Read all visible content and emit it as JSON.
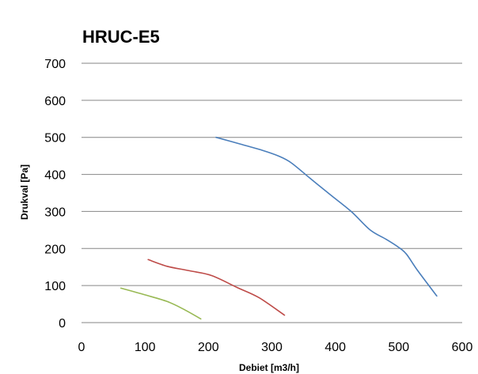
{
  "chart_data": {
    "type": "line",
    "title": "HRUC-E5",
    "xlabel": "Debiet [m3/h]",
    "ylabel": "Drukval [Pa]",
    "xlim": [
      0,
      600
    ],
    "ylim": [
      0,
      700
    ],
    "xticks": [
      0,
      100,
      200,
      300,
      400,
      500,
      600
    ],
    "yticks": [
      0,
      100,
      200,
      300,
      400,
      500,
      600,
      700
    ],
    "grid": "horizontal",
    "series": [
      {
        "color": "#4a7ebb",
        "points": [
          [
            212,
            500
          ],
          [
            250,
            482
          ],
          [
            285,
            465
          ],
          [
            310,
            450
          ],
          [
            330,
            432
          ],
          [
            360,
            390
          ],
          [
            390,
            348
          ],
          [
            425,
            300
          ],
          [
            455,
            250
          ],
          [
            480,
            225
          ],
          [
            500,
            203
          ],
          [
            512,
            185
          ],
          [
            530,
            140
          ],
          [
            560,
            72
          ]
        ]
      },
      {
        "color": "#be4b48",
        "points": [
          [
            105,
            170
          ],
          [
            135,
            152
          ],
          [
            170,
            140
          ],
          [
            205,
            127
          ],
          [
            245,
            95
          ],
          [
            280,
            67
          ],
          [
            320,
            20
          ]
        ]
      },
      {
        "color": "#98b954",
        "points": [
          [
            62,
            93
          ],
          [
            100,
            75
          ],
          [
            135,
            57
          ],
          [
            160,
            37
          ],
          [
            188,
            10
          ]
        ]
      }
    ]
  }
}
